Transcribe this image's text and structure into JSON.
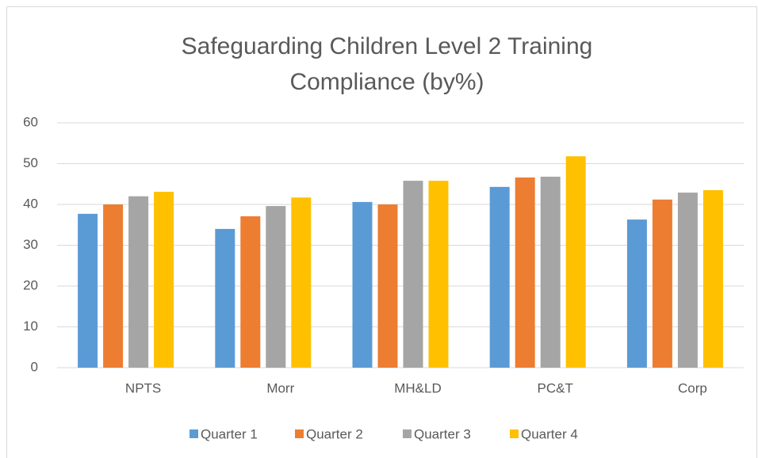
{
  "chart_data": {
    "type": "bar",
    "title": "Safeguarding Children Level 2 Training Compliance (by%)",
    "categories": [
      "NPTS",
      "Morr",
      "MH&LD",
      "PC&T",
      "Corp"
    ],
    "series": [
      {
        "name": "Quarter 1",
        "color": "#5b9bd5",
        "values": [
          37.7,
          34,
          40.6,
          44.3,
          36.3
        ]
      },
      {
        "name": "Quarter 2",
        "color": "#ed7d31",
        "values": [
          40,
          37.1,
          40,
          46.6,
          41.2
        ]
      },
      {
        "name": "Quarter 3",
        "color": "#a5a5a5",
        "values": [
          42,
          39.6,
          45.8,
          46.8,
          42.9
        ]
      },
      {
        "name": "Quarter 4",
        "color": "#ffc000",
        "values": [
          43.1,
          41.7,
          45.8,
          51.8,
          43.5
        ]
      }
    ],
    "ylim": [
      0,
      60
    ],
    "yticks": [
      0,
      10,
      20,
      30,
      40,
      50,
      60
    ],
    "grid": true,
    "legend": "bottom"
  }
}
